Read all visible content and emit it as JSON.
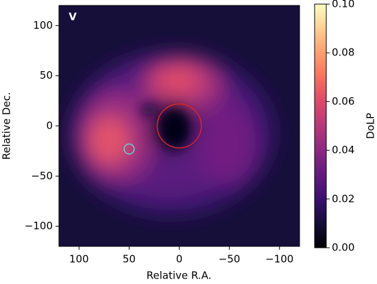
{
  "chart_data": {
    "type": "image",
    "xlabel": "Relative R.A.",
    "ylabel": "Relative Dec.",
    "panel_label": "V",
    "xlim": [
      120,
      -120
    ],
    "ylim": [
      -120,
      120
    ],
    "xticks": [
      100,
      50,
      0,
      {
        "value": -50,
        "label": "−50"
      },
      {
        "value": -100,
        "label": "−100"
      }
    ],
    "yticks": [
      100,
      50,
      0,
      {
        "value": -50,
        "label": "−50"
      },
      {
        "value": -100,
        "label": "−100"
      }
    ],
    "markers": [
      {
        "x": 0,
        "y": 0,
        "r": 22,
        "color": "#d62728"
      },
      {
        "x": 50,
        "y": -23,
        "r": 5,
        "color": "#5fd3d8"
      }
    ],
    "colorbar": {
      "label": "DoLP",
      "lim": [
        0,
        0.1
      ],
      "ticks": [
        {
          "value": 0,
          "label": "0.00"
        },
        0.02,
        0.04,
        0.06,
        0.08,
        {
          "value": 0.1,
          "label": "0.10"
        }
      ],
      "colors": [
        "#000004",
        "#140e36",
        "#3b0f70",
        "#641a80",
        "#8c2981",
        "#b73779",
        "#de4968",
        "#f7705c",
        "#fe9f6d",
        "#fecf92",
        "#fcfdbf"
      ]
    }
  }
}
